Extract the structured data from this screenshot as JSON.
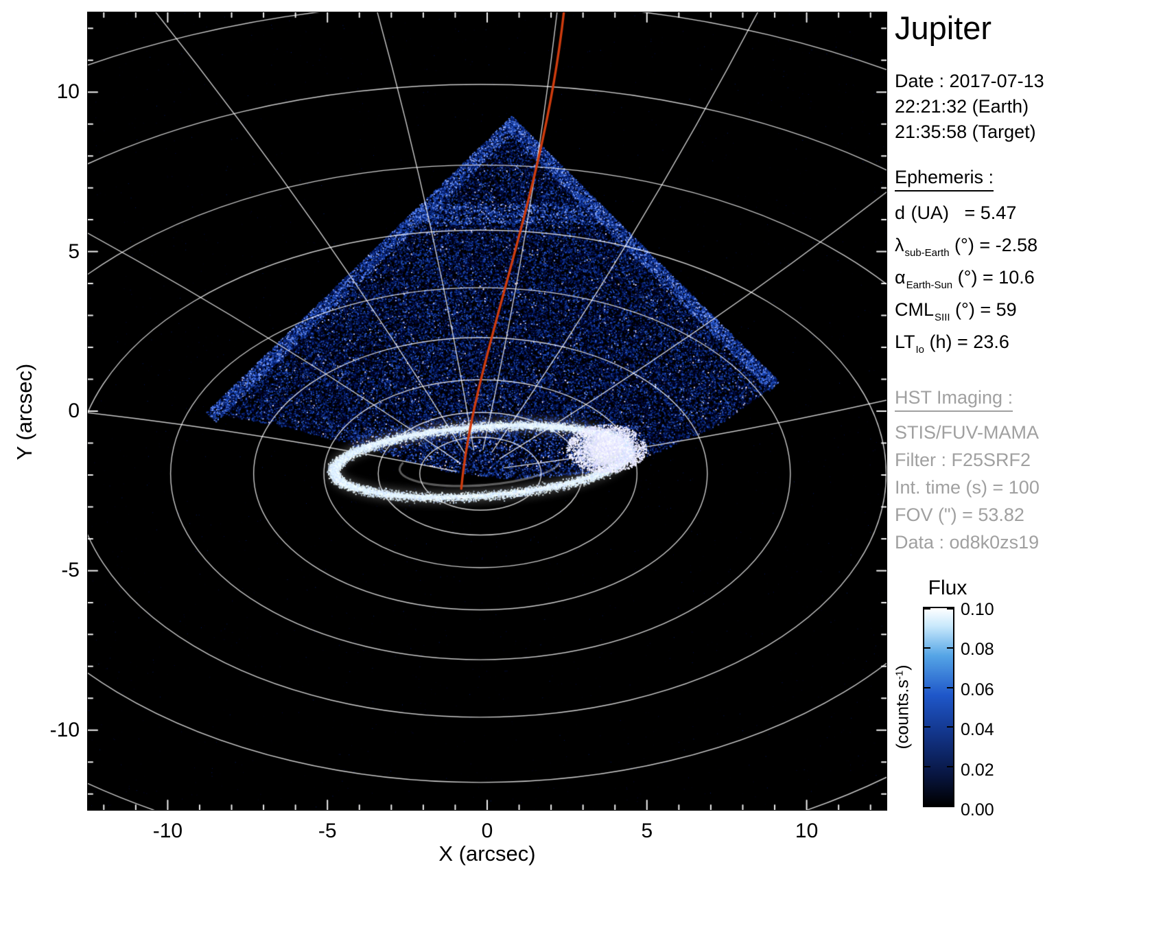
{
  "title_panel": {
    "title": "Jupiter",
    "date_line1": "Date : 2017-07-13",
    "date_line2": "22:21:32 (Earth)",
    "date_line3": "21:35:58 (Target)"
  },
  "ephemeris": {
    "header": "Ephemeris :",
    "rows": [
      {
        "sym": "d",
        "sub": "",
        "rest": " (UA)   = 5.47"
      },
      {
        "sym": "λ",
        "sub": "sub-Earth",
        "rest": " (°) = -2.58"
      },
      {
        "sym": "α",
        "sub": "Earth-Sun",
        "rest": " (°) = 10.6"
      },
      {
        "sym": "CML",
        "sub": "SIII",
        "rest": " (°) = 59"
      },
      {
        "sym": "LT",
        "sub": "Io",
        "rest": " (h) = 23.6"
      }
    ]
  },
  "hst": {
    "header": "HST Imaging :",
    "lines": [
      "STIS/FUV-MAMA",
      "Filter : F25SRF2",
      "Int. time (s) = 100",
      "FOV (\") = 53.82",
      "Data : od8k0zs19"
    ]
  },
  "chart_data": {
    "type": "heatmap",
    "title": "Jupiter",
    "xlabel": "X (arcsec)",
    "ylabel": "Y (arcsec)",
    "xlim": [
      -12.5,
      12.5
    ],
    "ylim": [
      -12.5,
      12.5
    ],
    "xticks": [
      -10,
      -5,
      0,
      5,
      10
    ],
    "yticks": [
      10,
      5,
      0,
      -5,
      -10
    ],
    "minor_step": 1,
    "background": "#000000",
    "grid_color": "#ffffff",
    "colorbar": {
      "title": "Flux",
      "unit_pre": "(counts.s",
      "unit_sup": "-1",
      "unit_post": ")",
      "ticks": [
        "0.10",
        "0.08",
        "0.06",
        "0.04",
        "0.02",
        "0.00"
      ],
      "range": [
        0.0,
        0.1
      ],
      "stops": [
        "#000000",
        "#081642",
        "#123488",
        "#1f57c9",
        "#55a5e6",
        "#c9e9fc",
        "#ffffff"
      ]
    },
    "overlay": {
      "description": "STIS FUV-MAMA exposure footprint (wedge of blue photon noise), white planetary lat-lon grid converging at the north pole, bright auroral oval, red Io footprint meridian",
      "red_line_color": "#cf3c0e",
      "red_line_bezier": [
        [
          2.4,
          12.5
        ],
        [
          1.72,
          6.43
        ],
        [
          -0.43,
          1.7
        ],
        [
          -0.81,
          -2.43
        ]
      ],
      "pole": [
        -0.21,
        -1.96
      ],
      "grid_aspect": 0.6,
      "grid_radii": [
        1.9,
        3.2,
        4.9,
        7.1,
        9.7,
        12.7,
        16.1,
        20.3,
        24.6
      ],
      "meridian_angles": [
        -85,
        -62,
        -38,
        -16,
        6,
        28,
        52,
        76
      ],
      "wedge": [
        [
          0.75,
          9.27
        ],
        [
          9.13,
          0.95
        ],
        [
          7.26,
          -0.41
        ],
        [
          5.11,
          -1.38
        ],
        [
          2.96,
          -1.96
        ],
        [
          0.82,
          -2.13
        ],
        [
          -1.33,
          -1.87
        ],
        [
          -3.48,
          -1.27
        ],
        [
          -6.06,
          -0.54
        ],
        [
          -8.81,
          -0.02
        ]
      ],
      "oval": {
        "center": [
          -0.21,
          -1.57
        ],
        "rx": 4.62,
        "ry": 1.08,
        "rot_deg": -4
      },
      "blob": {
        "center": [
          3.72,
          -1.16
        ],
        "rx": 0.97,
        "ry": 0.54
      }
    }
  }
}
